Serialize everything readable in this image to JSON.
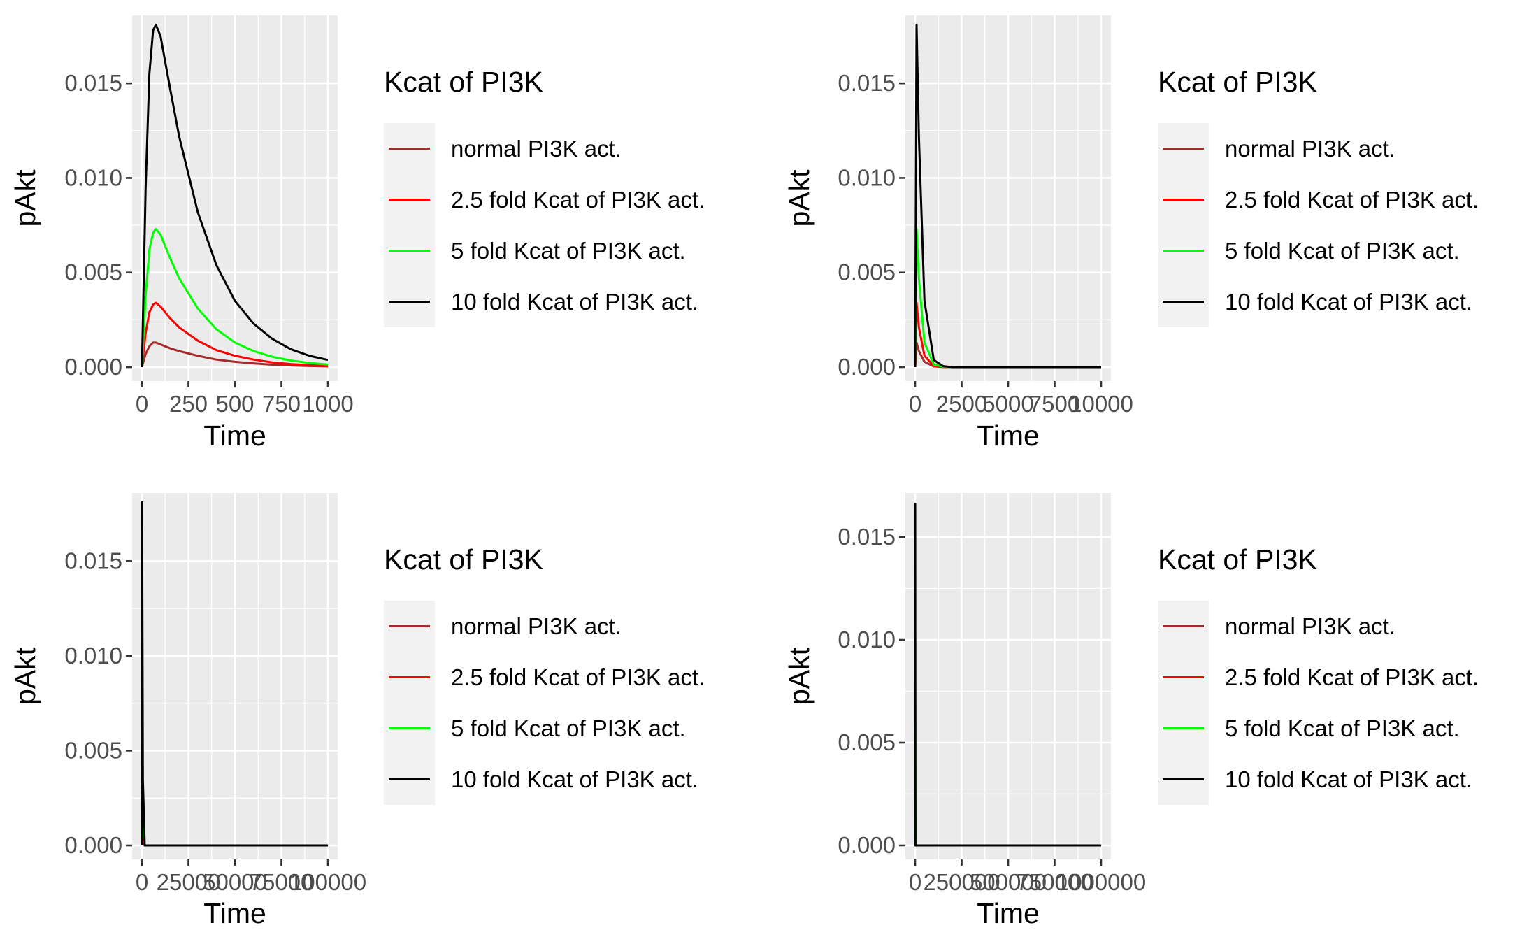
{
  "chart_data": [
    {
      "type": "line",
      "xlabel": "Time",
      "ylabel": "pAkt",
      "xlim": [
        0,
        1000
      ],
      "ylim": [
        0,
        0.018
      ],
      "x_ticks": [
        0,
        250,
        500,
        750,
        1000
      ],
      "x_tick_labels": [
        "0",
        "250",
        "500",
        "750",
        "1000"
      ],
      "y_ticks": [
        0,
        0.005,
        0.01,
        0.015
      ],
      "y_tick_labels": [
        "0.000",
        "0.005",
        "0.010",
        "0.015"
      ],
      "grid": true,
      "legend": {
        "title": "Kcat of PI3K",
        "placement": "right",
        "entries": [
          "normal PI3K act.",
          "2.5 fold Kcat of PI3K act.",
          "5 fold Kcat of PI3K act.",
          "10 fold Kcat of PI3K act."
        ]
      },
      "series": [
        {
          "name": "normal PI3K act.",
          "color": "#a52a2a",
          "x": [
            0,
            20,
            40,
            60,
            75,
            100,
            150,
            200,
            300,
            400,
            500,
            600,
            700,
            800,
            900,
            1000
          ],
          "y": [
            0,
            0.0007,
            0.0011,
            0.0013,
            0.0013,
            0.0012,
            0.001,
            0.00085,
            0.0006,
            0.0004,
            0.00028,
            0.0002,
            0.00013,
            9e-05,
            6e-05,
            4e-05
          ]
        },
        {
          "name": "2.5 fold Kcat of PI3K act.",
          "color": "#ff0000",
          "x": [
            0,
            20,
            40,
            60,
            75,
            100,
            150,
            200,
            300,
            400,
            500,
            600,
            700,
            800,
            900,
            1000
          ],
          "y": [
            0,
            0.0018,
            0.0029,
            0.0033,
            0.0034,
            0.0032,
            0.0026,
            0.0021,
            0.0014,
            0.0009,
            0.0006,
            0.0004,
            0.00025,
            0.00016,
            0.0001,
            6e-05
          ]
        },
        {
          "name": "5 fold Kcat of PI3K act.",
          "color": "#00ff00",
          "x": [
            0,
            20,
            40,
            60,
            75,
            100,
            150,
            200,
            300,
            400,
            500,
            600,
            700,
            800,
            900,
            1000
          ],
          "y": [
            0,
            0.0038,
            0.0062,
            0.0071,
            0.0073,
            0.007,
            0.0058,
            0.0047,
            0.0031,
            0.002,
            0.0013,
            0.00085,
            0.00055,
            0.00035,
            0.00022,
            0.00014
          ]
        },
        {
          "name": "10 fold Kcat of PI3K act.",
          "color": "#000000",
          "x": [
            0,
            20,
            40,
            60,
            75,
            100,
            150,
            200,
            300,
            400,
            500,
            600,
            700,
            800,
            900,
            1000
          ],
          "y": [
            0,
            0.0095,
            0.0155,
            0.0178,
            0.0181,
            0.0175,
            0.0148,
            0.0122,
            0.0082,
            0.0054,
            0.0035,
            0.0023,
            0.0015,
            0.00095,
            0.0006,
            0.00038
          ]
        }
      ]
    },
    {
      "type": "line",
      "xlabel": "Time",
      "ylabel": "pAkt",
      "xlim": [
        0,
        10000
      ],
      "ylim": [
        0,
        0.018
      ],
      "x_ticks": [
        0,
        2500,
        5000,
        7500,
        10000
      ],
      "x_tick_labels": [
        "0",
        "2500",
        "5000",
        "7500",
        "10000"
      ],
      "y_ticks": [
        0,
        0.005,
        0.01,
        0.015
      ],
      "y_tick_labels": [
        "0.000",
        "0.005",
        "0.010",
        "0.015"
      ],
      "grid": true,
      "legend": {
        "title": "Kcat of PI3K",
        "placement": "right",
        "entries": [
          "normal PI3K act.",
          "2.5 fold Kcat of PI3K act.",
          "5 fold Kcat of PI3K act.",
          "10 fold Kcat of PI3K act."
        ]
      },
      "series": [
        {
          "name": "normal PI3K act.",
          "color": "#a52a2a",
          "x": [
            0,
            75,
            200,
            500,
            1000,
            1500,
            2000,
            3000,
            10000
          ],
          "y": [
            0,
            0.0013,
            0.00085,
            0.00028,
            4e-05,
            5e-06,
            0,
            0,
            0
          ]
        },
        {
          "name": "2.5 fold Kcat of PI3K act.",
          "color": "#ff0000",
          "x": [
            0,
            75,
            200,
            500,
            1000,
            1500,
            2000,
            3000,
            10000
          ],
          "y": [
            0,
            0.0034,
            0.0021,
            0.0006,
            6e-05,
            1e-05,
            0,
            0,
            0
          ]
        },
        {
          "name": "5 fold Kcat of PI3K act.",
          "color": "#00ff00",
          "x": [
            0,
            75,
            200,
            500,
            1000,
            1500,
            2000,
            3000,
            10000
          ],
          "y": [
            0,
            0.0073,
            0.0047,
            0.0013,
            0.00014,
            2e-05,
            0,
            0,
            0
          ]
        },
        {
          "name": "10 fold Kcat of PI3K act.",
          "color": "#000000",
          "x": [
            0,
            75,
            200,
            500,
            1000,
            1500,
            2000,
            3000,
            10000
          ],
          "y": [
            0,
            0.0181,
            0.0122,
            0.0035,
            0.00038,
            5e-05,
            0,
            0,
            0
          ]
        }
      ]
    },
    {
      "type": "line",
      "xlabel": "Time",
      "ylabel": "pAkt",
      "xlim": [
        0,
        100000
      ],
      "ylim": [
        0,
        0.018
      ],
      "x_ticks": [
        0,
        25000,
        50000,
        75000,
        100000
      ],
      "x_tick_labels": [
        "0",
        "25000",
        "50000",
        "75000",
        "100000"
      ],
      "y_ticks": [
        0,
        0.005,
        0.01,
        0.015
      ],
      "y_tick_labels": [
        "0.000",
        "0.005",
        "0.010",
        "0.015"
      ],
      "grid": true,
      "legend": {
        "title": "Kcat of PI3K",
        "placement": "right",
        "entries": [
          "normal PI3K act.",
          "2.5 fold Kcat of PI3K act.",
          "5 fold Kcat of PI3K act.",
          "10 fold Kcat of PI3K act."
        ]
      },
      "series": [
        {
          "name": "normal PI3K act.",
          "color": "#a52a2a",
          "x": [
            0,
            75,
            500,
            1500,
            100000
          ],
          "y": [
            0,
            0.0013,
            0.00028,
            0,
            0
          ]
        },
        {
          "name": "2.5 fold Kcat of PI3K act.",
          "color": "#ff0000",
          "x": [
            0,
            75,
            500,
            1500,
            100000
          ],
          "y": [
            0,
            0.0034,
            0.0006,
            0,
            0
          ]
        },
        {
          "name": "5 fold Kcat of PI3K act.",
          "color": "#00ff00",
          "x": [
            0,
            75,
            500,
            1500,
            100000
          ],
          "y": [
            0,
            0.0073,
            0.0013,
            0,
            0
          ]
        },
        {
          "name": "10 fold Kcat of PI3K act.",
          "color": "#000000",
          "x": [
            0,
            75,
            500,
            1500,
            100000
          ],
          "y": [
            0,
            0.0181,
            0.0035,
            0,
            0
          ]
        }
      ]
    },
    {
      "type": "line",
      "xlabel": "Time",
      "ylabel": "pAkt",
      "xlim": [
        0,
        1000000
      ],
      "ylim": [
        0,
        0.0166
      ],
      "x_ticks": [
        0,
        250000,
        500000,
        750000,
        1000000
      ],
      "x_tick_labels": [
        "0",
        "250000",
        "500000",
        "750000",
        "1000000"
      ],
      "y_ticks": [
        0,
        0.005,
        0.01,
        0.015
      ],
      "y_tick_labels": [
        "0.000",
        "0.005",
        "0.010",
        "0.015"
      ],
      "grid": true,
      "legend": {
        "title": "Kcat of PI3K",
        "placement": "right",
        "entries": [
          "normal PI3K act.",
          "2.5 fold Kcat of PI3K act.",
          "5 fold Kcat of PI3K act.",
          "10 fold Kcat of PI3K act."
        ]
      },
      "series": [
        {
          "name": "normal PI3K act.",
          "color": "#a52a2a",
          "x": [
            0,
            75,
            1500,
            1000000
          ],
          "y": [
            0,
            0.0013,
            0,
            0
          ]
        },
        {
          "name": "2.5 fold Kcat of PI3K act.",
          "color": "#ff0000",
          "x": [
            0,
            75,
            1500,
            1000000
          ],
          "y": [
            0,
            0.0034,
            0,
            0
          ]
        },
        {
          "name": "5 fold Kcat of PI3K act.",
          "color": "#00ff00",
          "x": [
            0,
            75,
            1500,
            1000000
          ],
          "y": [
            0,
            0.0073,
            0,
            0
          ]
        },
        {
          "name": "10 fold Kcat of PI3K act.",
          "color": "#000000",
          "x": [
            0,
            75,
            1500,
            1000000
          ],
          "y": [
            0,
            0.0166,
            0,
            0
          ]
        }
      ]
    }
  ]
}
